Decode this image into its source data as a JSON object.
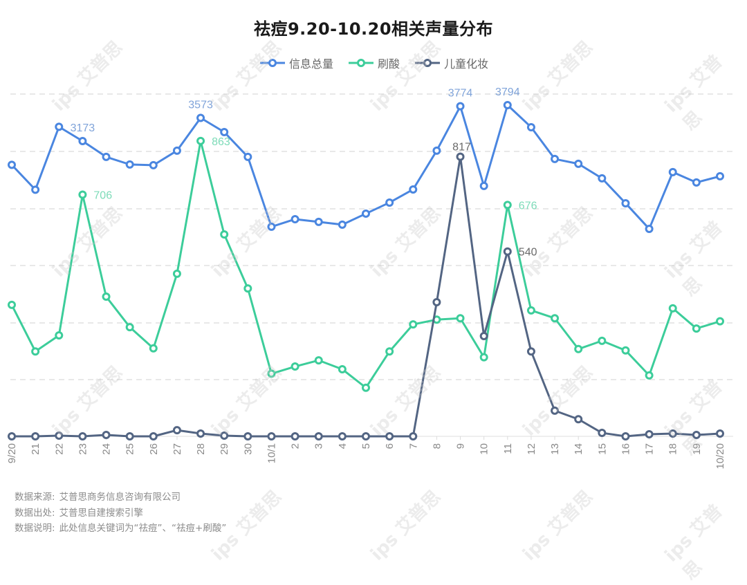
{
  "title": "祛痘9.20-10.20相关声量分布",
  "legend": [
    {
      "label": "信息总量",
      "color": "#4a86e0"
    },
    {
      "label": "刷酸",
      "color": "#3ccd9a"
    },
    {
      "label": "儿童化妆",
      "color": "#536583"
    }
  ],
  "footer": {
    "source_label": "数据来源:",
    "source_value": "艾普思商务信息咨询有限公司",
    "origin_label": "数据出处:",
    "origin_value": "艾普思自建搜索引擎",
    "note_label": "数据说明:",
    "note_value": "此处信息关键词为“祛痘”、“祛痘+刷酸”"
  },
  "watermark": "艾普思",
  "chart_data": {
    "type": "line",
    "title": "祛痘9.20-10.20相关声量分布",
    "xlabel": "",
    "ylabel": "",
    "grid": true,
    "legend_position": "top",
    "categories": [
      "9/20",
      "21",
      "22",
      "23",
      "24",
      "25",
      "26",
      "27",
      "28",
      "29",
      "30",
      "10/1",
      "2",
      "3",
      "4",
      "5",
      "6",
      "7",
      "8",
      "9",
      "10",
      "11",
      "12",
      "13",
      "14",
      "15",
      "16",
      "17",
      "18",
      "19",
      "10/20"
    ],
    "series": [
      {
        "name": "信息总量",
        "color": "#4a86e0",
        "axis": "secondary",
        "values": [
          2762,
          2332,
          3419,
          3173,
          2899,
          2768,
          2756,
          3007,
          3573,
          3328,
          2899,
          1692,
          1823,
          1776,
          1728,
          1919,
          2110,
          2337,
          3007,
          3774,
          2397,
          3794,
          3412,
          2863,
          2780,
          2529,
          2098,
          1656,
          2636,
          2457,
          2565
        ],
        "data_labels": {
          "23": 3173,
          "28": 3573,
          "9": 3774,
          "11": 3794
        }
      },
      {
        "name": "刷酸",
        "color": "#3ccd9a",
        "axis": "primary",
        "values": [
          384,
          248,
          295,
          706,
          408,
          319,
          257,
          475,
          863,
          590,
          432,
          183,
          204,
          222,
          196,
          142,
          248,
          327,
          341,
          345,
          231,
          676,
          368,
          345,
          255,
          279,
          251,
          178,
          374,
          315,
          336
        ],
        "data_labels": {
          "23": 706,
          "28": 863,
          "11": 676
        }
      },
      {
        "name": "儿童化妆",
        "color": "#536583",
        "axis": "primary",
        "values": [
          0,
          0,
          2,
          0,
          4,
          0,
          0,
          18,
          8,
          2,
          0,
          0,
          0,
          0,
          0,
          0,
          0,
          0,
          392,
          817,
          293,
          540,
          248,
          75,
          50,
          10,
          0,
          6,
          8,
          4,
          8
        ],
        "data_labels": {
          "9": 817,
          "11": 540
        }
      }
    ],
    "ylim_primary": [
      0,
      1000
    ],
    "ylim_secondary": [
      0,
      4000
    ]
  }
}
